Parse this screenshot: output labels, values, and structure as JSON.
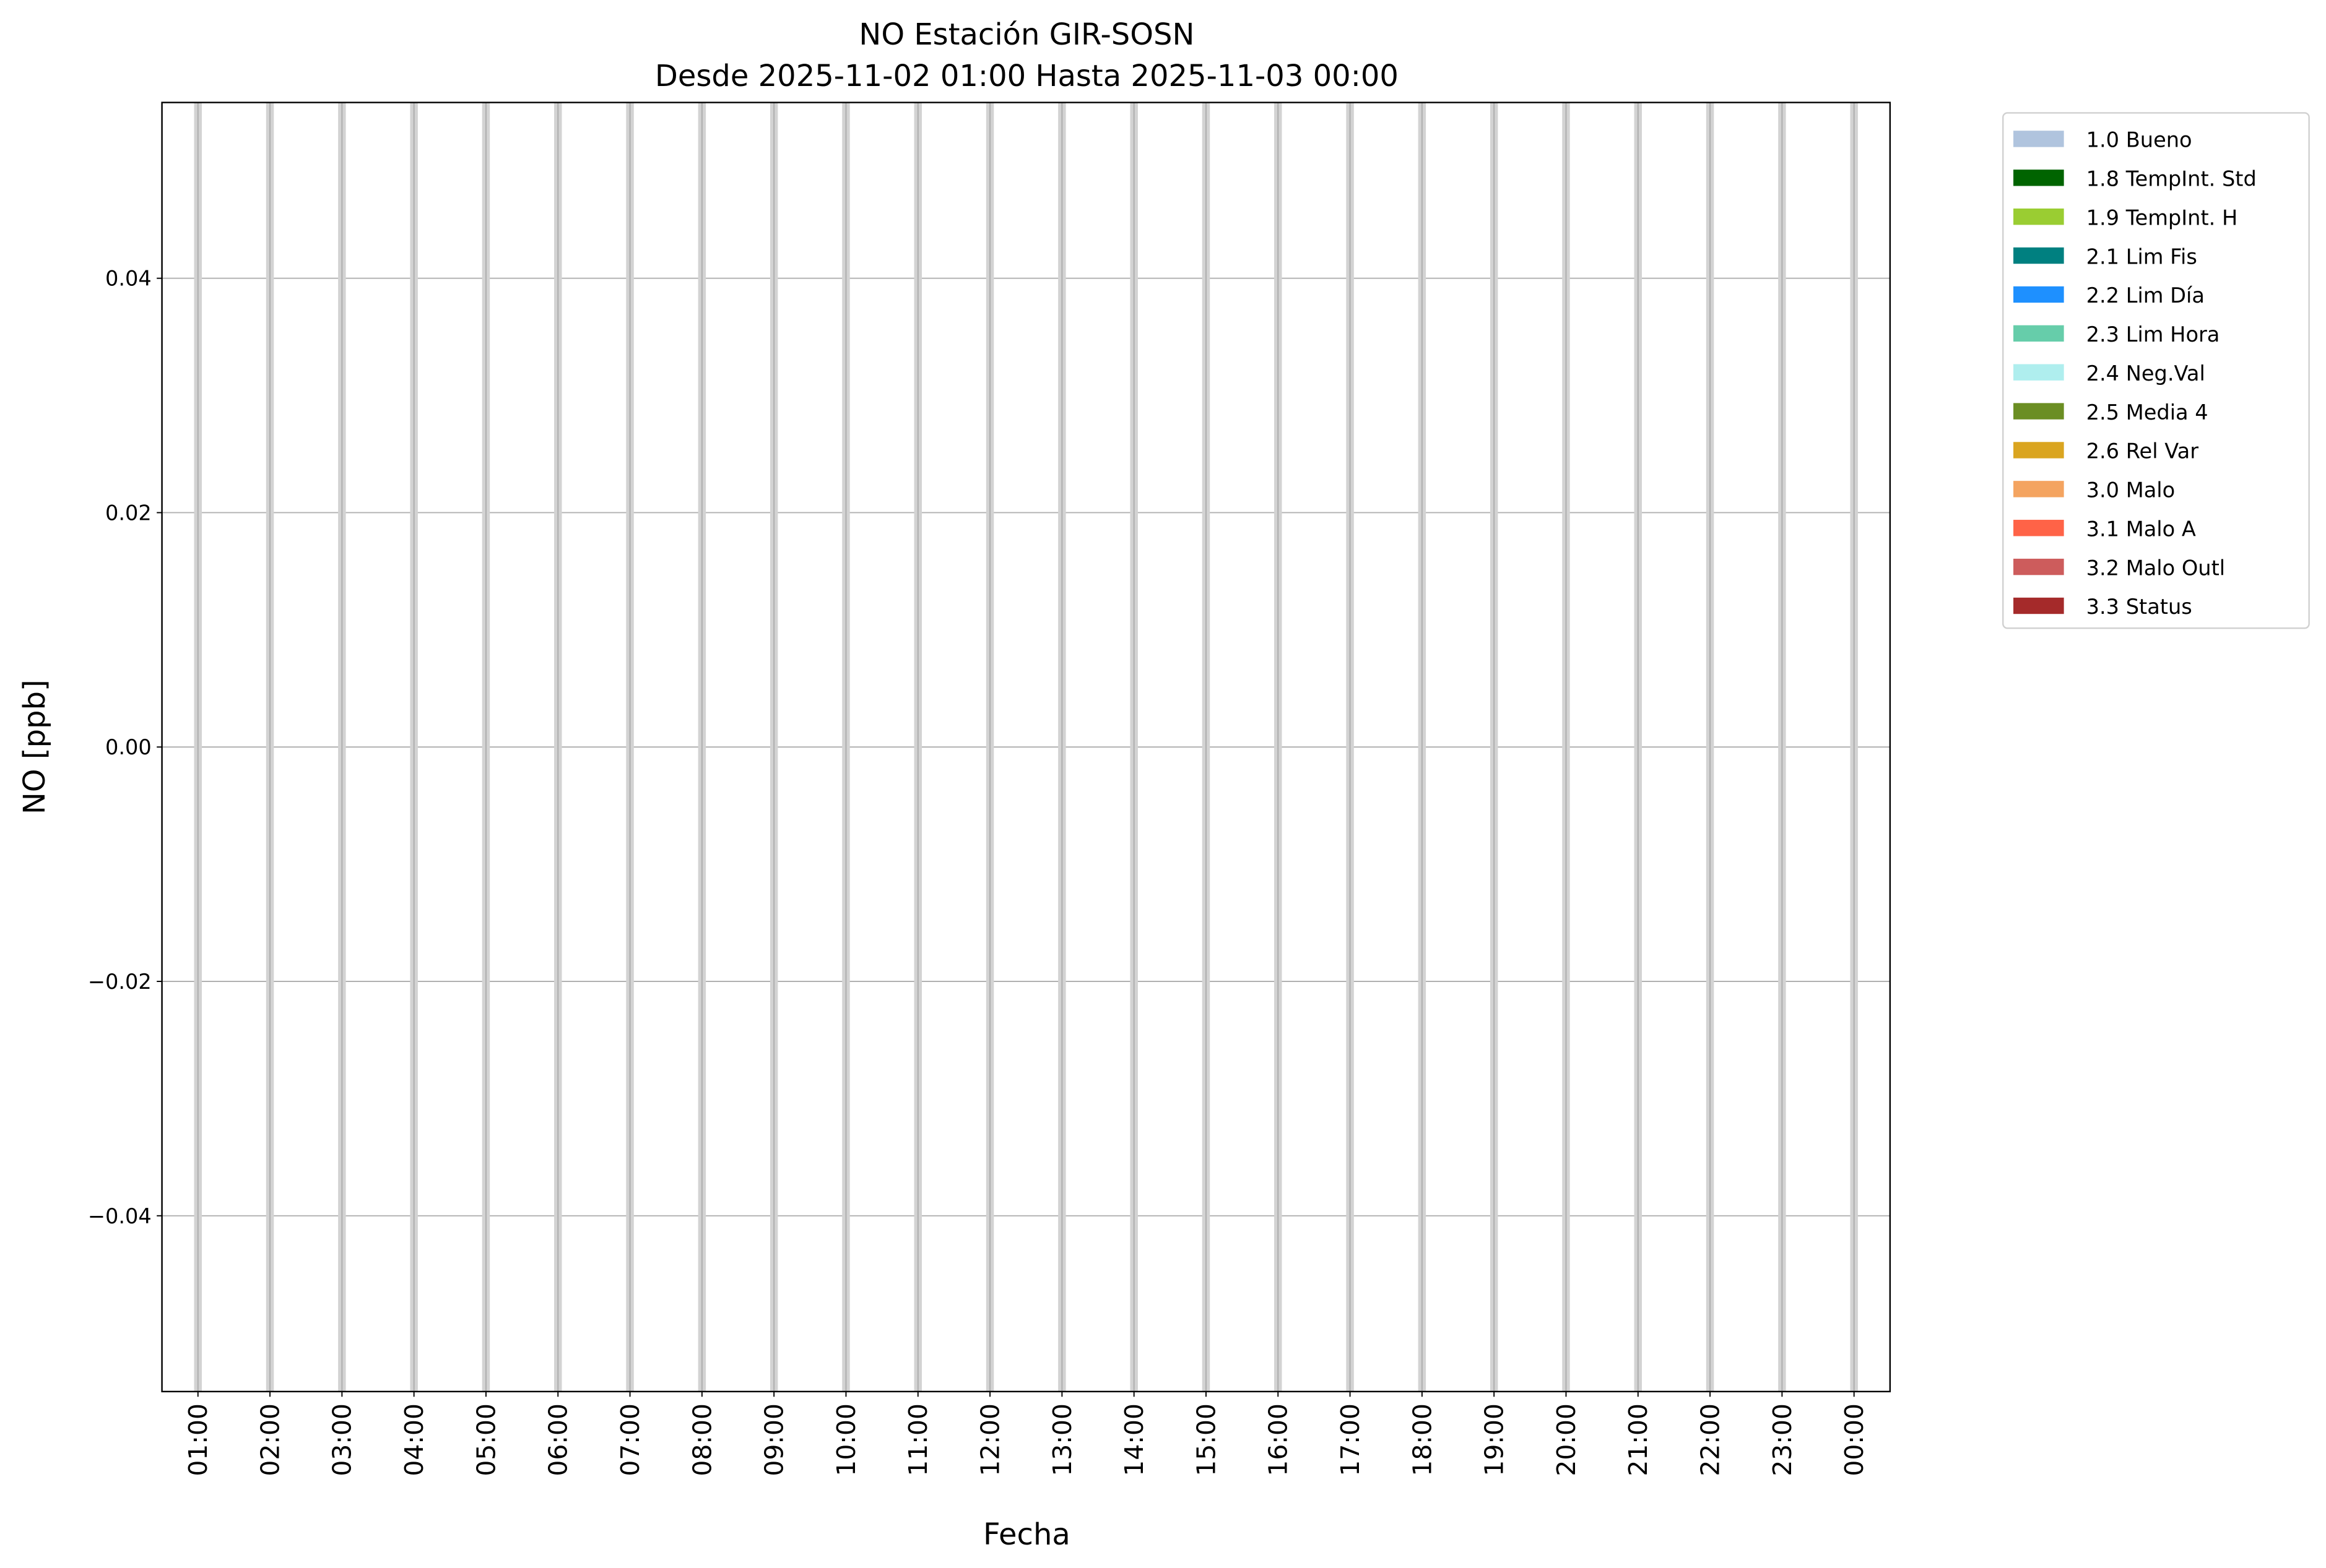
{
  "chart_data": {
    "type": "line",
    "title": "NO Estación GIR-SOSN",
    "subtitle": "Desde 2025-11-02 01:00 Hasta 2025-11-03 00:00",
    "xlabel": "Fecha",
    "ylabel": "NO [ppb]",
    "x_ticks": [
      "01:00",
      "02:00",
      "03:00",
      "04:00",
      "05:00",
      "06:00",
      "07:00",
      "08:00",
      "09:00",
      "10:00",
      "11:00",
      "12:00",
      "13:00",
      "14:00",
      "15:00",
      "16:00",
      "17:00",
      "18:00",
      "19:00",
      "20:00",
      "21:00",
      "22:00",
      "23:00",
      "00:00"
    ],
    "y_ticks": [
      0.04,
      0.02,
      0.0,
      -0.02,
      -0.04
    ],
    "y_tick_labels": [
      "0.04",
      "0.02",
      "0.00",
      "−0.02",
      "−0.04"
    ],
    "ylim": [
      -0.055,
      0.055
    ],
    "grid": true,
    "series": [],
    "legend_placement": "outside-top-right",
    "legend": [
      {
        "label": "1.0 Bueno",
        "color": "#b0c4de"
      },
      {
        "label": "1.8 TempInt. Std",
        "color": "#006400"
      },
      {
        "label": "1.9 TempInt. H",
        "color": "#9acd32"
      },
      {
        "label": "2.1 Lim Fis",
        "color": "#008080"
      },
      {
        "label": "2.2 Lim Día",
        "color": "#1e90ff"
      },
      {
        "label": "2.3 Lim Hora",
        "color": "#66cdaa"
      },
      {
        "label": "2.4 Neg.Val",
        "color": "#afeeee"
      },
      {
        "label": "2.5 Media 4",
        "color": "#6b8e23"
      },
      {
        "label": "2.6 Rel Var",
        "color": "#daa520"
      },
      {
        "label": "3.0 Malo",
        "color": "#f4a460"
      },
      {
        "label": "3.1 Malo A",
        "color": "#ff6347"
      },
      {
        "label": "3.2 Malo Outl",
        "color": "#cd5c5c"
      },
      {
        "label": "3.3 Status",
        "color": "#a52a2a"
      }
    ]
  }
}
